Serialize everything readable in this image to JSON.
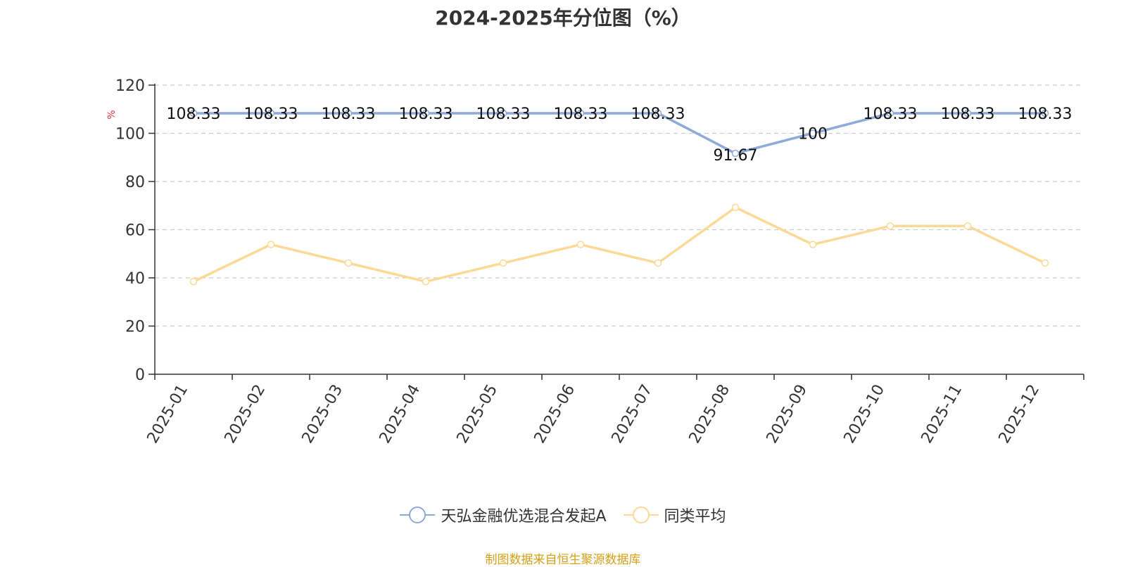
{
  "chart_data": {
    "type": "line",
    "title": "2024-2025年分位图（%）",
    "ylabel": "%",
    "ylim": [
      0,
      120
    ],
    "yticks": [
      0,
      20,
      40,
      60,
      80,
      100,
      120
    ],
    "grid": true,
    "legend_position": "bottom-center",
    "categories": [
      "2025-01",
      "2025-02",
      "2025-03",
      "2025-04",
      "2025-05",
      "2025-06",
      "2025-07",
      "2025-08",
      "2025-09",
      "2025-10",
      "2025-11",
      "2025-12"
    ],
    "series": [
      {
        "name": "天弘金融优选混合发起A",
        "color": "#8eaad8",
        "show_labels": true,
        "values": [
          108.33,
          108.33,
          108.33,
          108.33,
          108.33,
          108.33,
          108.33,
          91.67,
          100,
          108.33,
          108.33,
          108.33
        ]
      },
      {
        "name": "同类平均",
        "color": "#fcd996",
        "show_labels": false,
        "values": [
          38.46,
          53.85,
          46.15,
          38.46,
          46.15,
          53.85,
          46.15,
          69.23,
          53.85,
          61.54,
          61.54,
          46.15
        ]
      }
    ]
  },
  "footer": {
    "source": "制图数据来自恒生聚源数据库"
  }
}
